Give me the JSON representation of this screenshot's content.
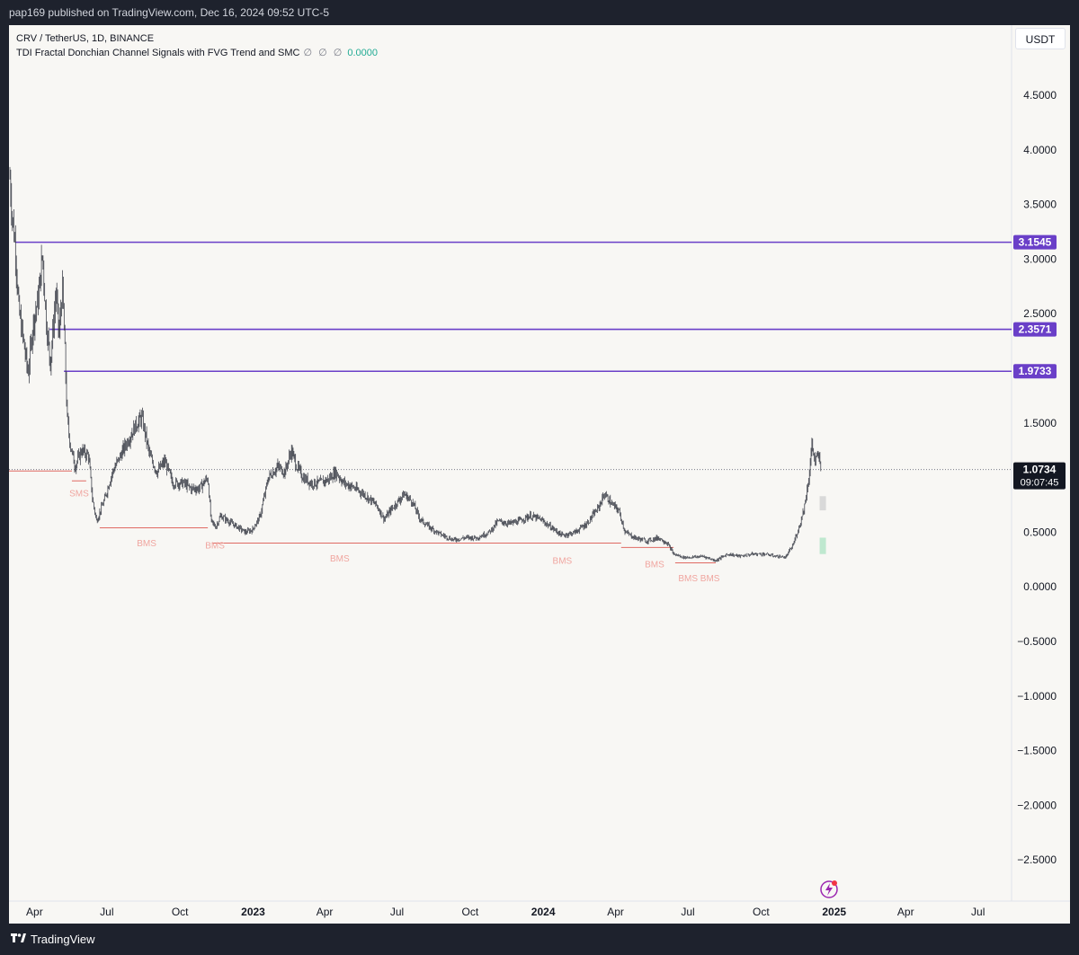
{
  "header": {
    "published": "pap169 published on TradingView.com, Dec 16, 2024 09:52 UTC-5"
  },
  "legend": {
    "symbol": "CRV / TetherUS, 1D, BINANCE",
    "indicator": "TDI Fractal Donchian Channel Signals with FVG Trend and SMC",
    "indicator_flags": "∅ ∅ ∅",
    "indicator_value": "0.0000"
  },
  "currency_button": "USDT",
  "footer": {
    "brand": "TradingView"
  },
  "colors": {
    "level_line": "#6a3fc8",
    "bms": "#f0a59f",
    "structure_line": "#e06a63",
    "candle": "#2a2e39",
    "price_tag": "#131722"
  },
  "chart_data": {
    "type": "candlestick",
    "symbol": "CRV / TetherUS",
    "interval": "1D",
    "exchange": "BINANCE",
    "x_ticks": [
      "Apr",
      "Jul",
      "Oct",
      "2023",
      "Apr",
      "Jul",
      "Oct",
      "2024",
      "Apr",
      "Jul",
      "Oct",
      "2025",
      "Apr",
      "Jul"
    ],
    "y_ticks": [
      "4.5000",
      "4.0000",
      "3.5000",
      "3.0000",
      "2.5000",
      "2.0000",
      "1.5000",
      "1.0000",
      "0.5000",
      "0.0000",
      "−0.5000",
      "−1.0000",
      "−1.5000",
      "−2.0000",
      "−2.5000"
    ],
    "y_tick_values": [
      4.5,
      4.0,
      3.5,
      3.0,
      2.5,
      2.0,
      1.5,
      1.0,
      0.5,
      0.0,
      -0.5,
      -1.0,
      -1.5,
      -2.0,
      -2.5
    ],
    "ylim": [
      -2.65,
      4.95
    ],
    "price_path": [
      [
        "2022-03-01",
        3.75
      ],
      [
        "2022-03-04",
        3.4
      ],
      [
        "2022-03-08",
        3.1
      ],
      [
        "2022-03-12",
        2.55
      ],
      [
        "2022-03-18",
        2.25
      ],
      [
        "2022-03-24",
        1.95
      ],
      [
        "2022-03-30",
        2.4
      ],
      [
        "2022-04-06",
        2.65
      ],
      [
        "2022-04-11",
        3.05
      ],
      [
        "2022-04-16",
        2.4
      ],
      [
        "2022-04-21",
        2.05
      ],
      [
        "2022-04-28",
        2.7
      ],
      [
        "2022-05-02",
        2.3
      ],
      [
        "2022-05-06",
        2.75
      ],
      [
        "2022-05-09",
        2.2
      ],
      [
        "2022-05-12",
        1.55
      ],
      [
        "2022-05-16",
        1.3
      ],
      [
        "2022-05-22",
        1.1
      ],
      [
        "2022-05-30",
        1.25
      ],
      [
        "2022-06-08",
        1.2
      ],
      [
        "2022-06-13",
        0.8
      ],
      [
        "2022-06-18",
        0.6
      ],
      [
        "2022-06-28",
        0.8
      ],
      [
        "2022-07-08",
        1.05
      ],
      [
        "2022-07-18",
        1.2
      ],
      [
        "2022-07-28",
        1.35
      ],
      [
        "2022-08-08",
        1.5
      ],
      [
        "2022-08-14",
        1.55
      ],
      [
        "2022-08-24",
        1.2
      ],
      [
        "2022-09-02",
        1.05
      ],
      [
        "2022-09-12",
        1.15
      ],
      [
        "2022-09-22",
        0.95
      ],
      [
        "2022-10-05",
        0.95
      ],
      [
        "2022-10-15",
        0.9
      ],
      [
        "2022-10-25",
        0.9
      ],
      [
        "2022-11-05",
        1.0
      ],
      [
        "2022-11-09",
        0.6
      ],
      [
        "2022-11-15",
        0.55
      ],
      [
        "2022-11-21",
        0.65
      ],
      [
        "2022-12-01",
        0.6
      ],
      [
        "2022-12-12",
        0.55
      ],
      [
        "2022-12-22",
        0.5
      ],
      [
        "2022-12-31",
        0.52
      ],
      [
        "2023-01-10",
        0.65
      ],
      [
        "2023-01-20",
        1.0
      ],
      [
        "2023-02-01",
        1.1
      ],
      [
        "2023-02-10",
        1.05
      ],
      [
        "2023-02-18",
        1.25
      ],
      [
        "2023-02-25",
        1.1
      ],
      [
        "2023-03-05",
        1.0
      ],
      [
        "2023-03-15",
        0.95
      ],
      [
        "2023-03-25",
        0.95
      ],
      [
        "2023-04-05",
        0.98
      ],
      [
        "2023-04-15",
        1.05
      ],
      [
        "2023-04-25",
        0.95
      ],
      [
        "2023-05-05",
        0.92
      ],
      [
        "2023-05-20",
        0.85
      ],
      [
        "2023-06-05",
        0.75
      ],
      [
        "2023-06-15",
        0.62
      ],
      [
        "2023-06-25",
        0.72
      ],
      [
        "2023-07-10",
        0.85
      ],
      [
        "2023-07-20",
        0.78
      ],
      [
        "2023-07-30",
        0.62
      ],
      [
        "2023-08-10",
        0.55
      ],
      [
        "2023-08-25",
        0.48
      ],
      [
        "2023-09-10",
        0.43
      ],
      [
        "2023-09-25",
        0.45
      ],
      [
        "2023-10-10",
        0.45
      ],
      [
        "2023-10-25",
        0.5
      ],
      [
        "2023-11-05",
        0.6
      ],
      [
        "2023-11-20",
        0.58
      ],
      [
        "2023-12-01",
        0.6
      ],
      [
        "2023-12-15",
        0.65
      ],
      [
        "2023-12-28",
        0.62
      ],
      [
        "2024-01-10",
        0.55
      ],
      [
        "2024-01-25",
        0.47
      ],
      [
        "2024-02-10",
        0.5
      ],
      [
        "2024-02-25",
        0.58
      ],
      [
        "2024-03-10",
        0.72
      ],
      [
        "2024-03-18",
        0.85
      ],
      [
        "2024-03-28",
        0.75
      ],
      [
        "2024-04-05",
        0.7
      ],
      [
        "2024-04-13",
        0.5
      ],
      [
        "2024-04-25",
        0.45
      ],
      [
        "2024-05-10",
        0.42
      ],
      [
        "2024-05-25",
        0.45
      ],
      [
        "2024-06-05",
        0.4
      ],
      [
        "2024-06-13",
        0.3
      ],
      [
        "2024-06-25",
        0.27
      ],
      [
        "2024-07-05",
        0.27
      ],
      [
        "2024-07-20",
        0.28
      ],
      [
        "2024-08-05",
        0.24
      ],
      [
        "2024-08-20",
        0.3
      ],
      [
        "2024-09-05",
        0.28
      ],
      [
        "2024-09-20",
        0.3
      ],
      [
        "2024-10-05",
        0.3
      ],
      [
        "2024-10-20",
        0.28
      ],
      [
        "2024-11-01",
        0.27
      ],
      [
        "2024-11-10",
        0.38
      ],
      [
        "2024-11-18",
        0.55
      ],
      [
        "2024-11-25",
        0.75
      ],
      [
        "2024-11-30",
        1.0
      ],
      [
        "2024-12-04",
        1.3
      ],
      [
        "2024-12-08",
        1.15
      ],
      [
        "2024-12-12",
        1.2
      ],
      [
        "2024-12-16",
        1.0734
      ]
    ],
    "horizontal_levels": [
      {
        "label": "3.1545",
        "value": 3.1545,
        "start": "2022-03-08"
      },
      {
        "label": "2.3571",
        "value": 2.3571,
        "start": "2022-04-20"
      },
      {
        "label": "1.9733",
        "value": 1.9733,
        "start": "2022-05-08"
      }
    ],
    "current_price": {
      "label": "1.0734",
      "value": 1.0734,
      "countdown": "09:07:45"
    },
    "structure_lines": [
      {
        "start": "2022-02-20",
        "end": "2022-05-18",
        "value": 1.06
      },
      {
        "start": "2022-05-18",
        "end": "2022-06-05",
        "value": 0.97
      },
      {
        "start": "2022-06-22",
        "end": "2022-11-05",
        "value": 0.54
      },
      {
        "start": "2022-11-10",
        "end": "2024-04-08",
        "value": 0.4
      },
      {
        "start": "2024-04-08",
        "end": "2024-06-13",
        "value": 0.36
      },
      {
        "start": "2024-06-15",
        "end": "2024-08-05",
        "value": 0.22
      }
    ],
    "annotations": [
      {
        "text": "SMS",
        "date": "2022-05-27",
        "value": 0.83
      },
      {
        "text": "BMS",
        "date": "2022-08-20",
        "value": 0.37
      },
      {
        "text": "BMS",
        "date": "2022-11-14",
        "value": 0.35
      },
      {
        "text": "BMS",
        "date": "2023-04-20",
        "value": 0.23
      },
      {
        "text": "BMS",
        "date": "2024-01-25",
        "value": 0.21
      },
      {
        "text": "BMS",
        "date": "2024-05-20",
        "value": 0.18
      },
      {
        "text": "BMS BMS",
        "date": "2024-07-15",
        "value": 0.05
      }
    ],
    "grid": false,
    "price_axis": "right",
    "time_axis": "bottom"
  }
}
